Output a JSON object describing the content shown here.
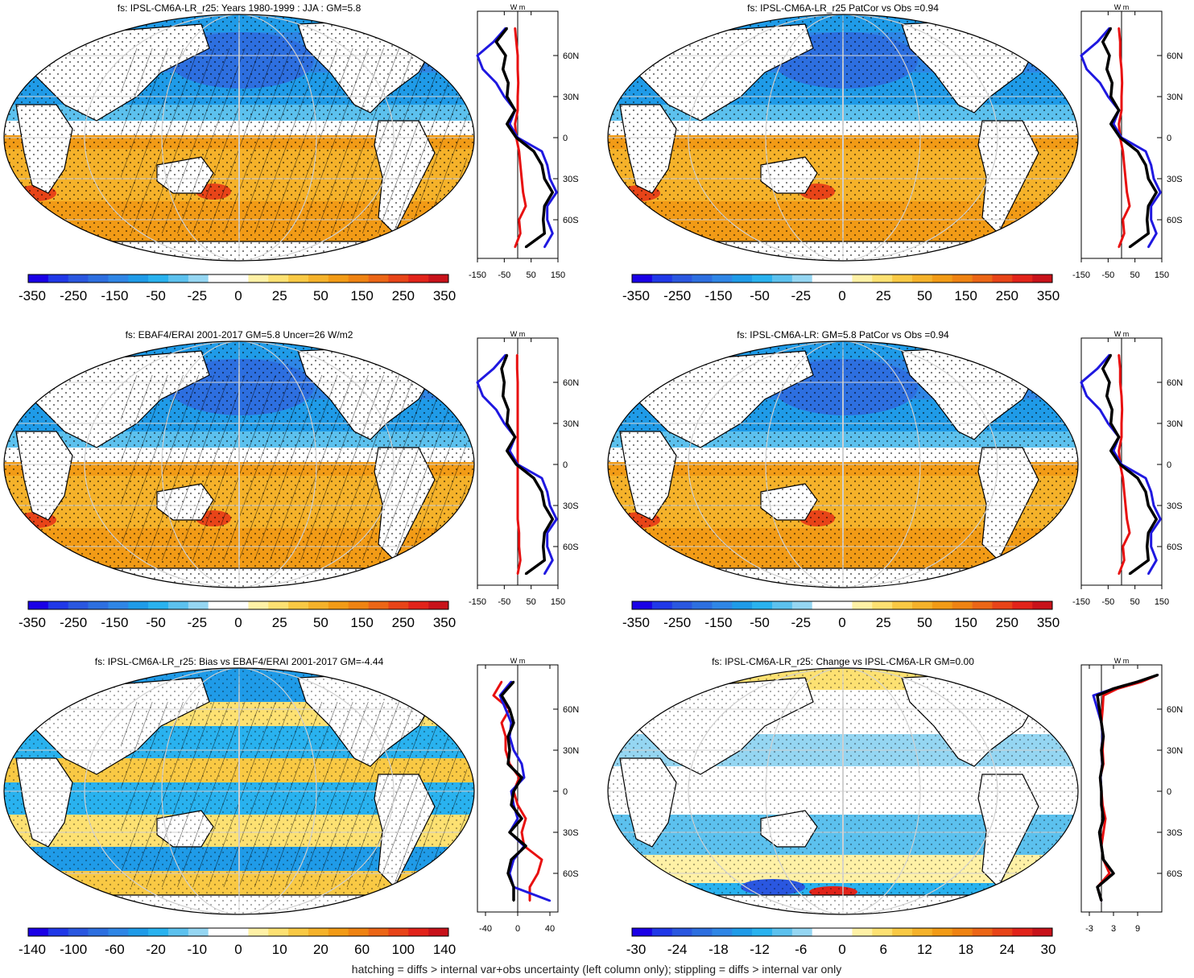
{
  "footer": "hatching = diffs > internal var+obs uncertainty (left column only); stippling = diffs > internal var only",
  "colors": {
    "neg": [
      "#1a00e6",
      "#2038e8",
      "#2a57e0",
      "#2d6fe0",
      "#2f86e6",
      "#1f9be8",
      "#29b2ef",
      "#5cc1ee",
      "#95d6f2"
    ],
    "pos": [
      "#fff1a6",
      "#fde172",
      "#f9c944",
      "#f5b22a",
      "#f29b16",
      "#ef8312",
      "#ec6616",
      "#e84418",
      "#e2231a",
      "#c8121a"
    ],
    "white": "#ffffff",
    "land": "#ffffff",
    "black_line": "#000000",
    "blue_line": "#1f18e0",
    "red_line": "#e81010",
    "grid": "#d0d0d0"
  },
  "chart_data": [
    {
      "type": "heatmap",
      "panel": "row1-left",
      "title": "fs: IPSL-CM6A-LR_r25: Years 1980-1999 : JJA : GM=5.8",
      "colorbar_labels": [
        "-350",
        "-250",
        "-150",
        "-50",
        "-25",
        "0",
        "25",
        "50",
        "150",
        "250",
        "350"
      ],
      "zonal_mean": {
        "xticks": [
          "-150",
          "-50",
          "50",
          "150"
        ],
        "xlim": [
          -150,
          150
        ],
        "yticks": [
          "60N",
          "30N",
          "0",
          "30S",
          "60S"
        ],
        "unit": "W m",
        "lat": [
          80,
          70,
          60,
          50,
          40,
          30,
          20,
          10,
          0,
          -10,
          -20,
          -30,
          -40,
          -50,
          -60,
          -70,
          -80
        ],
        "series": [
          {
            "name": "black",
            "values": [
              -40,
              -80,
              -45,
              -55,
              -35,
              -40,
              -10,
              -40,
              -5,
              60,
              90,
              100,
              130,
              100,
              95,
              100,
              30
            ]
          },
          {
            "name": "blue",
            "values": [
              -45,
              -90,
              -150,
              -130,
              -80,
              -50,
              -10,
              -30,
              0,
              90,
              110,
              120,
              145,
              110,
              110,
              130,
              100
            ]
          },
          {
            "name": "red",
            "values": [
              -10,
              -5,
              0,
              0,
              2,
              0,
              0,
              -10,
              -5,
              5,
              10,
              15,
              20,
              30,
              5,
              10,
              -10
            ]
          }
        ]
      }
    },
    {
      "type": "heatmap",
      "panel": "row1-right",
      "title": "fs: IPSL-CM6A-LR_r25 PatCor vs Obs =0.94",
      "colorbar_labels": [
        "-350",
        "-250",
        "-150",
        "-50",
        "-25",
        "0",
        "25",
        "50",
        "150",
        "250",
        "350"
      ],
      "zonal_mean": {
        "xticks": [
          "-150",
          "-50",
          "50",
          "150"
        ],
        "xlim": [
          -150,
          150
        ],
        "yticks": [
          "60N",
          "30N",
          "0",
          "30S",
          "60S"
        ],
        "unit": "W m",
        "lat": [
          80,
          70,
          60,
          50,
          40,
          30,
          20,
          10,
          0,
          -10,
          -20,
          -30,
          -40,
          -50,
          -60,
          -70,
          -80
        ],
        "series": [
          {
            "name": "black",
            "values": [
              -40,
              -70,
              -45,
              -55,
              -35,
              -40,
              -10,
              -40,
              -5,
              60,
              90,
              100,
              130,
              100,
              95,
              100,
              30
            ]
          },
          {
            "name": "blue",
            "values": [
              -45,
              -90,
              -150,
              -130,
              -80,
              -50,
              -10,
              -30,
              0,
              90,
              110,
              120,
              145,
              110,
              110,
              130,
              100
            ]
          },
          {
            "name": "red",
            "values": [
              -10,
              -5,
              -5,
              0,
              2,
              0,
              0,
              -10,
              -5,
              5,
              10,
              15,
              20,
              30,
              5,
              10,
              -10
            ]
          }
        ]
      }
    },
    {
      "type": "heatmap",
      "panel": "row2-left",
      "title": "fs: EBAF4/ERAI 2001-2017 GM=5.8 Uncer=26 W/m2",
      "colorbar_labels": [
        "-350",
        "-250",
        "-150",
        "-50",
        "-25",
        "0",
        "25",
        "50",
        "150",
        "250",
        "350"
      ],
      "zonal_mean": {
        "xticks": [
          "-150",
          "-50",
          "50",
          "150"
        ],
        "xlim": [
          -150,
          150
        ],
        "yticks": [
          "60N",
          "30N",
          "0",
          "30S",
          "60S"
        ],
        "unit": "W m",
        "lat": [
          80,
          70,
          60,
          50,
          40,
          30,
          20,
          10,
          0,
          -10,
          -20,
          -30,
          -40,
          -50,
          -60,
          -70,
          -80
        ],
        "series": [
          {
            "name": "black",
            "values": [
              -40,
              -60,
              -50,
              -55,
              -35,
              -40,
              -10,
              -40,
              -5,
              60,
              90,
              100,
              130,
              100,
              95,
              100,
              30
            ]
          },
          {
            "name": "blue",
            "values": [
              -45,
              -90,
              -150,
              -130,
              -80,
              -50,
              -10,
              -30,
              0,
              90,
              110,
              120,
              145,
              110,
              110,
              130,
              100
            ]
          },
          {
            "name": "red",
            "values": [
              -2,
              -2,
              0,
              0,
              0,
              0,
              0,
              0,
              0,
              0,
              0,
              0,
              0,
              5,
              5,
              10,
              0
            ]
          }
        ]
      }
    },
    {
      "type": "heatmap",
      "panel": "row2-right",
      "title": "fs: IPSL-CM6A-LR: GM=5.8 PatCor vs Obs =0.94",
      "colorbar_labels": [
        "-350",
        "-250",
        "-150",
        "-50",
        "-25",
        "0",
        "25",
        "50",
        "150",
        "250",
        "350"
      ],
      "zonal_mean": {
        "xticks": [
          "-150",
          "-50",
          "50",
          "150"
        ],
        "xlim": [
          -150,
          150
        ],
        "yticks": [
          "60N",
          "30N",
          "0",
          "30S",
          "60S"
        ],
        "unit": "W m",
        "lat": [
          80,
          70,
          60,
          50,
          40,
          30,
          20,
          10,
          0,
          -10,
          -20,
          -30,
          -40,
          -50,
          -60,
          -70,
          -80
        ],
        "series": [
          {
            "name": "black",
            "values": [
              -40,
              -70,
              -45,
              -55,
              -35,
              -40,
              -10,
              -40,
              -5,
              60,
              90,
              100,
              130,
              100,
              95,
              100,
              30
            ]
          },
          {
            "name": "blue",
            "values": [
              -45,
              -90,
              -150,
              -130,
              -80,
              -50,
              -10,
              -30,
              0,
              90,
              110,
              120,
              145,
              110,
              110,
              130,
              100
            ]
          },
          {
            "name": "red",
            "values": [
              -10,
              -5,
              -5,
              0,
              2,
              0,
              0,
              -10,
              -5,
              5,
              10,
              15,
              20,
              30,
              5,
              10,
              -10
            ]
          }
        ]
      }
    },
    {
      "type": "heatmap",
      "panel": "row3-left",
      "title": "fs: IPSL-CM6A-LR_r25: Bias vs EBAF4/ERAI 2001-2017 GM=-4.44",
      "colorbar_labels": [
        "-140",
        "-100",
        "-60",
        "-20",
        "-10",
        "0",
        "10",
        "20",
        "60",
        "100",
        "140"
      ],
      "zonal_mean": {
        "xticks": [
          "-40",
          "0",
          "40"
        ],
        "xlim": [
          -50,
          50
        ],
        "yticks": [
          "60N",
          "30N",
          "0",
          "30S",
          "60S"
        ],
        "unit": "W m",
        "lat": [
          80,
          70,
          60,
          50,
          40,
          30,
          20,
          10,
          0,
          -10,
          -20,
          -30,
          -40,
          -50,
          -60,
          -70,
          -80
        ],
        "series": [
          {
            "name": "black",
            "values": [
              -5,
              -20,
              -10,
              -5,
              -12,
              -10,
              -12,
              5,
              -5,
              -8,
              5,
              -10,
              10,
              -8,
              -12,
              -5,
              -5
            ]
          },
          {
            "name": "blue",
            "values": [
              -8,
              -22,
              -15,
              -8,
              -10,
              -5,
              5,
              8,
              -8,
              -5,
              0,
              -10,
              8,
              -5,
              -10,
              -5,
              40
            ]
          },
          {
            "name": "red",
            "values": [
              -20,
              -30,
              -10,
              -20,
              -15,
              -15,
              -10,
              2,
              -5,
              0,
              10,
              5,
              8,
              30,
              25,
              15,
              15
            ]
          }
        ]
      }
    },
    {
      "type": "heatmap",
      "panel": "row3-right",
      "title": "fs: IPSL-CM6A-LR_r25: Change vs IPSL-CM6A-LR GM=0.00",
      "colorbar_labels": [
        "-30",
        "-24",
        "-18",
        "-12",
        "-6",
        "0",
        "6",
        "12",
        "18",
        "24",
        "30"
      ],
      "zonal_mean": {
        "xticks": [
          "-3",
          "3",
          "9"
        ],
        "xlim": [
          -5,
          15
        ],
        "yticks": [
          "60N",
          "30N",
          "0",
          "30S",
          "60S"
        ],
        "unit": "W m",
        "lat": [
          85,
          80,
          75,
          70,
          60,
          50,
          40,
          30,
          20,
          10,
          0,
          -10,
          -20,
          -30,
          -40,
          -50,
          -60,
          -70,
          -80
        ],
        "series": [
          {
            "name": "black",
            "values": [
              14,
              9,
              3,
              -1,
              -0.5,
              0,
              0.5,
              0,
              0.3,
              -0.3,
              0,
              0,
              0.5,
              -0.5,
              0,
              0.5,
              3,
              -1,
              0
            ]
          },
          {
            "name": "blue",
            "values": [
              14,
              9,
              3,
              -2,
              -1,
              0,
              0.3,
              0,
              0.2,
              -0.2,
              0,
              0,
              0.5,
              -0.5,
              0,
              0.5,
              3,
              -1,
              0
            ]
          },
          {
            "name": "red",
            "values": [
              14,
              10,
              4,
              0.5,
              0.3,
              0,
              0.5,
              0.3,
              0.5,
              -0.3,
              0,
              0.3,
              1,
              0.5,
              0,
              0.5,
              2,
              -1,
              0
            ]
          }
        ]
      }
    }
  ]
}
